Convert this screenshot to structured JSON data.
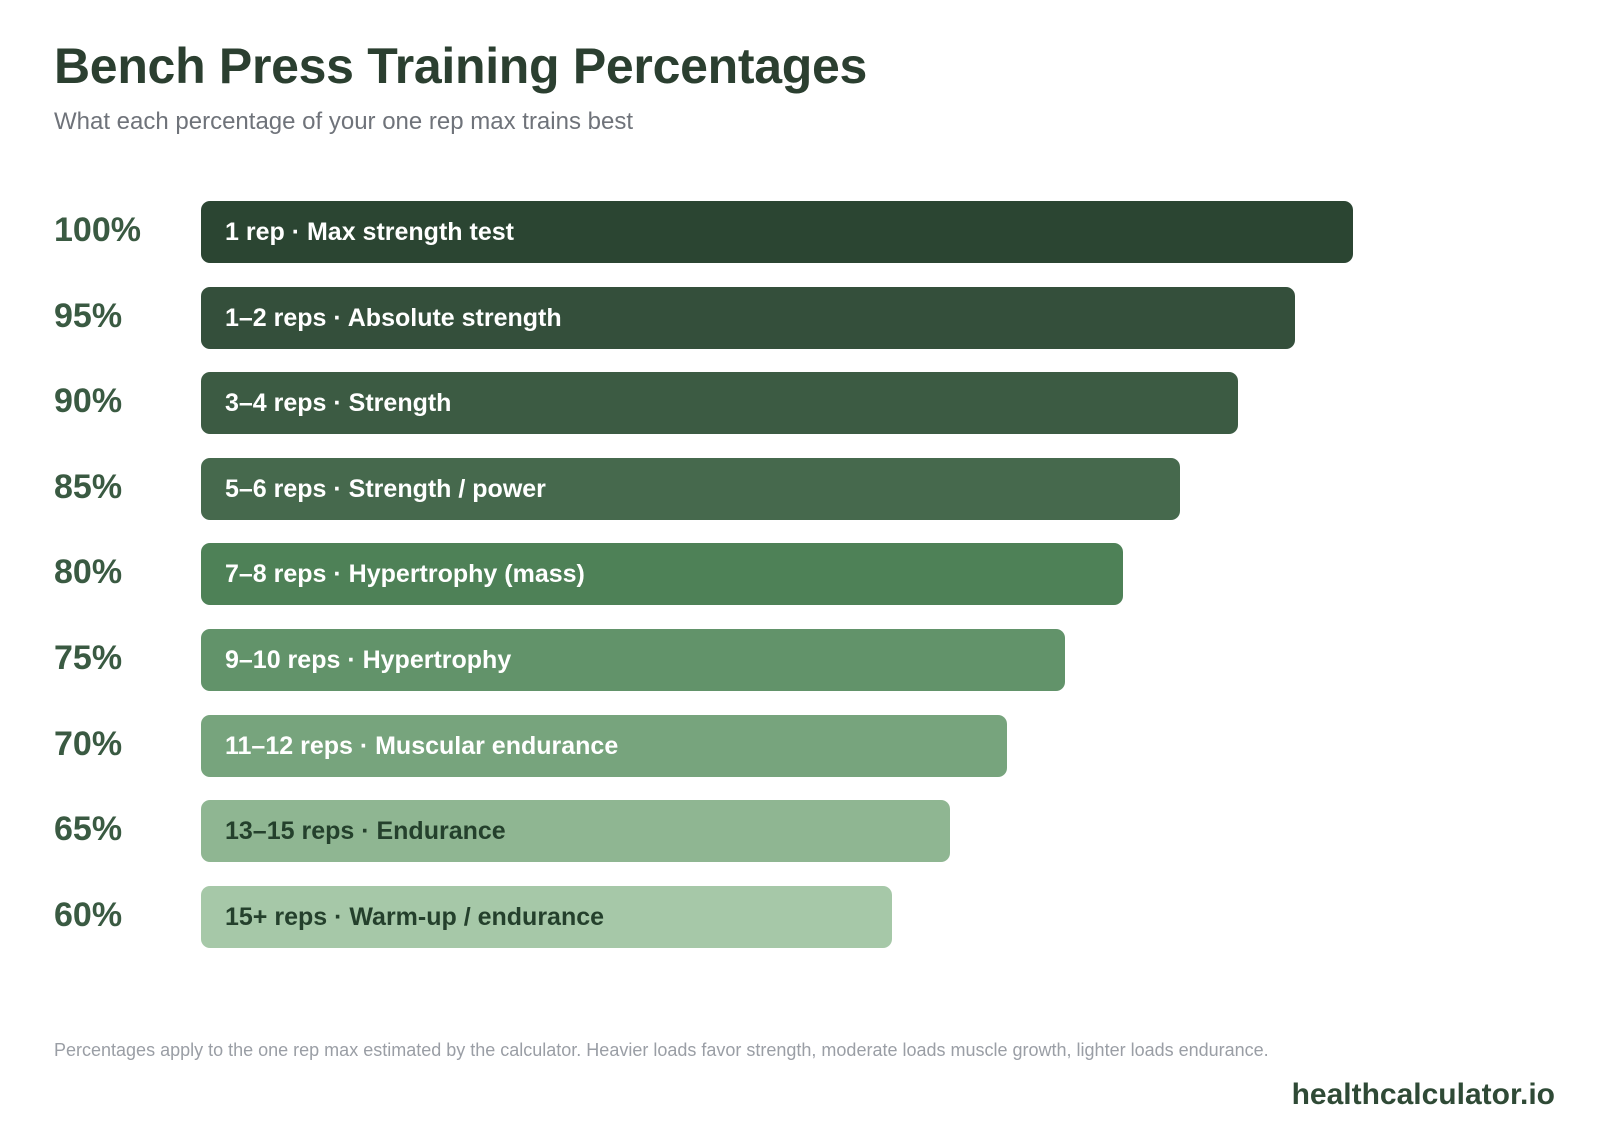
{
  "header": {
    "title": "Bench Press Training Percentages",
    "subtitle": "What each percentage of your one rep max trains best"
  },
  "chart_data": {
    "type": "bar",
    "orientation": "horizontal",
    "categories": [
      "100%",
      "95%",
      "90%",
      "85%",
      "80%",
      "75%",
      "70%",
      "65%",
      "60%"
    ],
    "values": [
      100,
      95,
      90,
      85,
      80,
      75,
      70,
      65,
      60
    ],
    "bar_labels": [
      "1 rep · Max strength test",
      "1–2 reps · Absolute strength",
      "3–4 reps · Strength",
      "5–6 reps · Strength / power",
      "7–8 reps · Hypertrophy (mass)",
      "9–10 reps · Hypertrophy",
      "11–12 reps · Muscular endurance",
      "13–15 reps · Endurance",
      "15+ reps · Warm-up / endurance"
    ],
    "bar_colors": [
      "#2b4532",
      "#344f3b",
      "#3c5b43",
      "#46694d",
      "#4e8157",
      "#62936a",
      "#77a47d",
      "#8fb692",
      "#a6c8a8"
    ],
    "text_colors": [
      "#ffffff",
      "#ffffff",
      "#ffffff",
      "#ffffff",
      "#ffffff",
      "#ffffff",
      "#ffffff",
      "#24402c",
      "#24402c"
    ],
    "xlim": [
      0,
      100
    ],
    "grid": false,
    "legend": "none"
  },
  "footer": {
    "note": "Percentages apply to the one rep max estimated by the calculator. Heavier loads favor strength, moderate loads muscle growth, lighter loads endurance.",
    "brand": "healthcalculator.io"
  }
}
